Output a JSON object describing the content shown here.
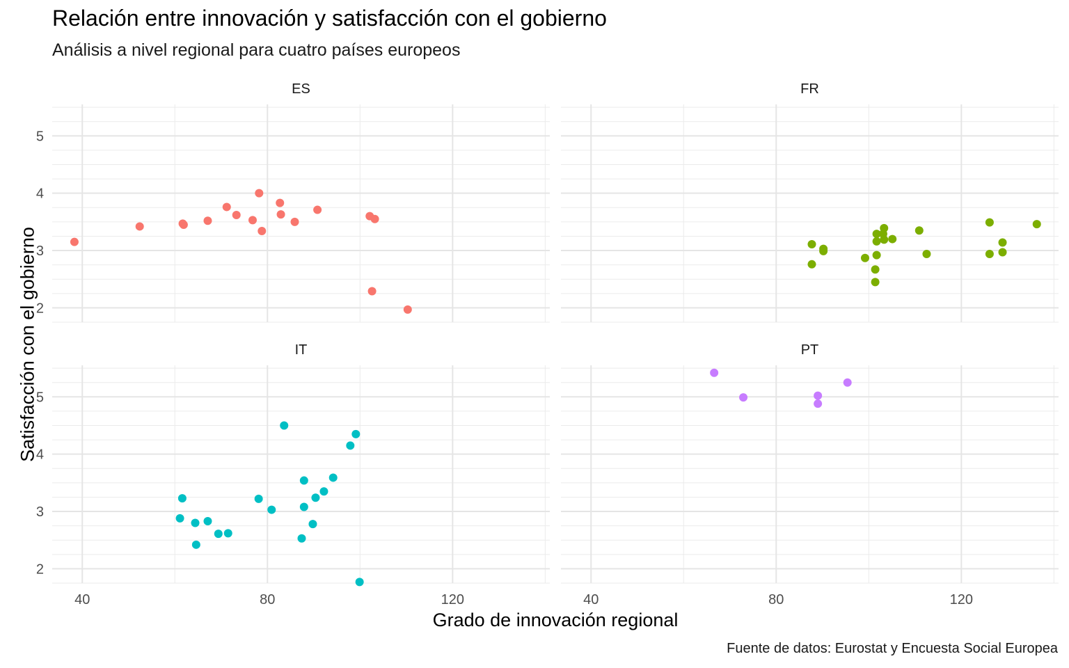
{
  "chart_data": {
    "type": "scatter",
    "title": "Relación entre innovación y satisfacción con el gobierno",
    "subtitle": "Análisis a nivel regional para cuatro países europeos",
    "caption": "Fuente de datos: Eurostat y Encuesta Social Europea",
    "xlabel": "Grado de innovación regional",
    "ylabel": "Satisfacción con el gobierno",
    "xlim": [
      33.5,
      141
    ],
    "ylim": [
      1.75,
      5.55
    ],
    "x_ticks": [
      40,
      80,
      120
    ],
    "y_ticks": [
      2,
      3,
      4,
      5
    ],
    "grid": true,
    "legend": "none",
    "facets": [
      {
        "name": "ES",
        "color": "#F8766D",
        "points": [
          [
            38.3,
            3.15
          ],
          [
            52.4,
            3.42
          ],
          [
            61.7,
            3.47
          ],
          [
            61.9,
            3.45
          ],
          [
            67.1,
            3.52
          ],
          [
            71.2,
            3.76
          ],
          [
            73.3,
            3.62
          ],
          [
            76.8,
            3.53
          ],
          [
            78.2,
            4.0
          ],
          [
            78.8,
            3.34
          ],
          [
            82.7,
            3.83
          ],
          [
            82.9,
            3.63
          ],
          [
            85.9,
            3.5
          ],
          [
            90.8,
            3.71
          ],
          [
            102.1,
            3.6
          ],
          [
            103.2,
            3.55
          ],
          [
            102.6,
            2.29
          ],
          [
            110.3,
            1.97
          ]
        ]
      },
      {
        "name": "FR",
        "color": "#7CAE00",
        "points": [
          [
            87.7,
            3.11
          ],
          [
            87.7,
            2.76
          ],
          [
            90.2,
            3.03
          ],
          [
            90.2,
            2.99
          ],
          [
            99.2,
            2.87
          ],
          [
            101.7,
            2.92
          ],
          [
            101.4,
            2.67
          ],
          [
            101.4,
            2.45
          ],
          [
            101.7,
            3.29
          ],
          [
            101.7,
            3.16
          ],
          [
            103.3,
            3.39
          ],
          [
            103.1,
            3.29
          ],
          [
            103.3,
            3.19
          ],
          [
            105.1,
            3.2
          ],
          [
            110.9,
            3.35
          ],
          [
            112.5,
            2.94
          ],
          [
            126.1,
            3.49
          ],
          [
            126.1,
            2.94
          ],
          [
            128.9,
            3.14
          ],
          [
            128.9,
            2.97
          ],
          [
            136.3,
            3.46
          ]
        ]
      },
      {
        "name": "IT",
        "color": "#00BFC4",
        "points": [
          [
            61.1,
            2.88
          ],
          [
            61.6,
            3.23
          ],
          [
            64.4,
            2.8
          ],
          [
            64.6,
            2.42
          ],
          [
            67.1,
            2.83
          ],
          [
            69.4,
            2.61
          ],
          [
            71.5,
            2.62
          ],
          [
            78.1,
            3.22
          ],
          [
            80.9,
            3.03
          ],
          [
            83.6,
            4.5
          ],
          [
            87.4,
            2.53
          ],
          [
            87.9,
            3.08
          ],
          [
            87.9,
            3.54
          ],
          [
            89.8,
            2.78
          ],
          [
            90.4,
            3.24
          ],
          [
            92.2,
            3.35
          ],
          [
            94.2,
            3.59
          ],
          [
            97.9,
            4.15
          ],
          [
            99.1,
            4.35
          ],
          [
            99.9,
            1.77
          ]
        ]
      },
      {
        "name": "PT",
        "color": "#C77CFF",
        "points": [
          [
            66.6,
            5.42
          ],
          [
            72.9,
            4.99
          ],
          [
            89.0,
            5.02
          ],
          [
            89.0,
            4.88
          ],
          [
            95.4,
            5.25
          ]
        ]
      }
    ]
  }
}
